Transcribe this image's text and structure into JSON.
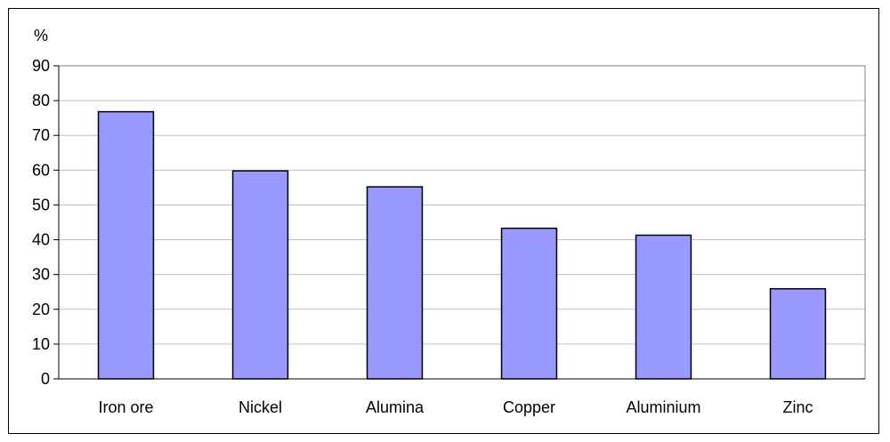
{
  "chart_data": {
    "type": "bar",
    "title": "",
    "ylabel": "%",
    "xlabel": "",
    "categories": [
      "Iron ore",
      "Nickel",
      "Alumina",
      "Copper",
      "Aluminium",
      "Zinc"
    ],
    "values": [
      76.8,
      59.8,
      55.2,
      43.3,
      41.3,
      25.9
    ],
    "ylim": [
      0,
      90
    ],
    "yticks": [
      0,
      10,
      20,
      30,
      40,
      50,
      60,
      70,
      80,
      90
    ],
    "grid": true,
    "legend": "none",
    "colors": {
      "bar": "#9999ff",
      "bar_stroke": "#000000",
      "grid": "#c0c0c0"
    }
  }
}
